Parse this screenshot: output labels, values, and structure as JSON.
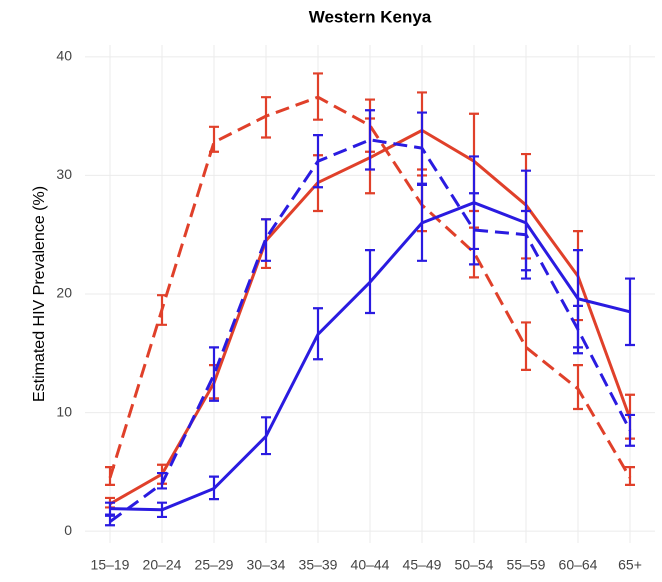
{
  "chart_data": {
    "type": "line",
    "title": "Western Kenya",
    "y_label": "Estimated HIV Prevalence (%)",
    "categories": [
      "15–19",
      "20–24",
      "25–29",
      "30–34",
      "35–39",
      "40–44",
      "45–49",
      "50–54",
      "55–59",
      "60–64",
      "65+"
    ],
    "ylim": [
      -1,
      41
    ],
    "yticks": [
      0,
      10,
      20,
      30,
      40
    ],
    "grid": true,
    "series": [
      {
        "color": "#e0402a",
        "dashed": false,
        "values": [
          2.3,
          4.8,
          12.5,
          24.5,
          29.4,
          31.5,
          33.8,
          31.2,
          27.5,
          21.5,
          9.5
        ],
        "lower": [
          2.0,
          4.0,
          11.2,
          22.2,
          27.0,
          28.5,
          30.5,
          27.0,
          23.0,
          17.8,
          7.8
        ],
        "upper": [
          2.8,
          5.6,
          14.0,
          26.3,
          31.7,
          34.8,
          37.0,
          35.2,
          31.8,
          25.3,
          11.5
        ]
      },
      {
        "color": "#e0402a",
        "dashed": true,
        "values": [
          4.5,
          18.7,
          32.8,
          35.0,
          36.6,
          34.2,
          27.5,
          23.5,
          15.5,
          12.0,
          4.5
        ],
        "lower": [
          3.9,
          17.4,
          32.0,
          33.2,
          34.7,
          32.0,
          25.3,
          21.4,
          13.6,
          10.3,
          3.9
        ],
        "upper": [
          5.4,
          19.9,
          34.1,
          36.6,
          38.6,
          36.4,
          30.0,
          25.6,
          17.6,
          14.0,
          5.4
        ]
      },
      {
        "color": "#2a1be0",
        "dashed": false,
        "values": [
          1.9,
          1.8,
          3.6,
          8.0,
          16.6,
          21.0,
          26.0,
          27.7,
          26.0,
          19.6,
          18.5
        ],
        "lower": [
          1.4,
          1.2,
          2.7,
          6.5,
          14.5,
          18.4,
          22.8,
          23.8,
          21.3,
          15.5,
          15.7
        ],
        "upper": [
          2.4,
          2.4,
          4.6,
          9.6,
          18.8,
          23.7,
          29.2,
          31.6,
          30.4,
          23.7,
          21.3
        ]
      },
      {
        "color": "#2a1be0",
        "dashed": true,
        "values": [
          0.8,
          4.0,
          13.2,
          24.7,
          31.2,
          33.0,
          32.3,
          25.4,
          25.0,
          17.0,
          8.5
        ],
        "lower": [
          0.5,
          3.6,
          11.0,
          22.8,
          29.0,
          30.5,
          29.3,
          22.5,
          22.0,
          15.0,
          7.2
        ],
        "upper": [
          1.3,
          4.9,
          15.5,
          26.3,
          33.4,
          35.5,
          35.3,
          28.5,
          27.0,
          19.0,
          9.8
        ]
      }
    ]
  }
}
